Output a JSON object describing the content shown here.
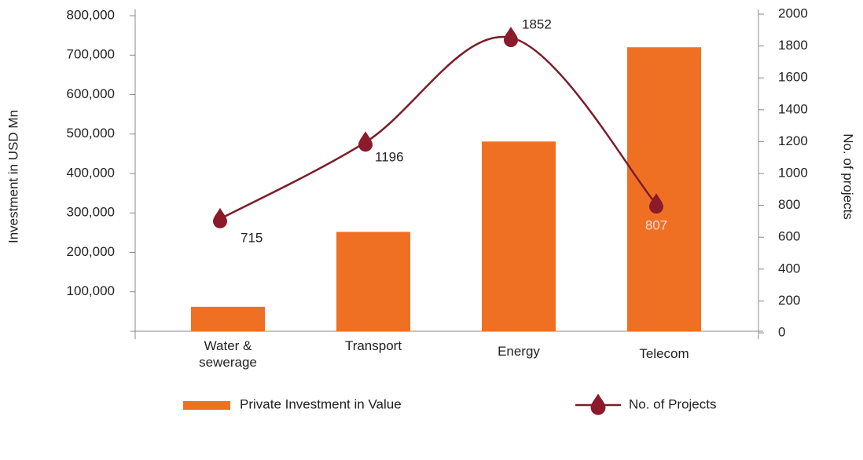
{
  "chart_data": {
    "type": "bar",
    "categories": [
      "Water & sewerage",
      "Transport",
      "Energy",
      "Telecom"
    ],
    "series": [
      {
        "name": "Private Investment in Value",
        "type": "bar",
        "color": "#f07023",
        "values": [
          62000,
          252000,
          481000,
          720000
        ]
      },
      {
        "name": "No. of Projects",
        "type": "line",
        "axis": "y2",
        "color": "#7b1c2a",
        "values": [
          715,
          1196,
          1852,
          807
        ]
      }
    ],
    "ylabel": "Investment in USD Mn",
    "y2label": "No. of projects",
    "ylim": [
      0,
      800000
    ],
    "yticks": [
      {
        "value": 100000,
        "label": "100,000"
      },
      {
        "value": 200000,
        "label": "200,000"
      },
      {
        "value": 300000,
        "label": "300,000"
      },
      {
        "value": 400000,
        "label": "400,000"
      },
      {
        "value": 500000,
        "label": "500,000"
      },
      {
        "value": 600000,
        "label": "600,000"
      },
      {
        "value": 700000,
        "label": "700,000"
      },
      {
        "value": 800000,
        "label": "800,000"
      }
    ],
    "y2lim": [
      0,
      2000
    ],
    "y2ticks": [
      0,
      200,
      400,
      600,
      800,
      1000,
      1200,
      1400,
      1600,
      1800,
      2000
    ],
    "legend": "bottom"
  }
}
